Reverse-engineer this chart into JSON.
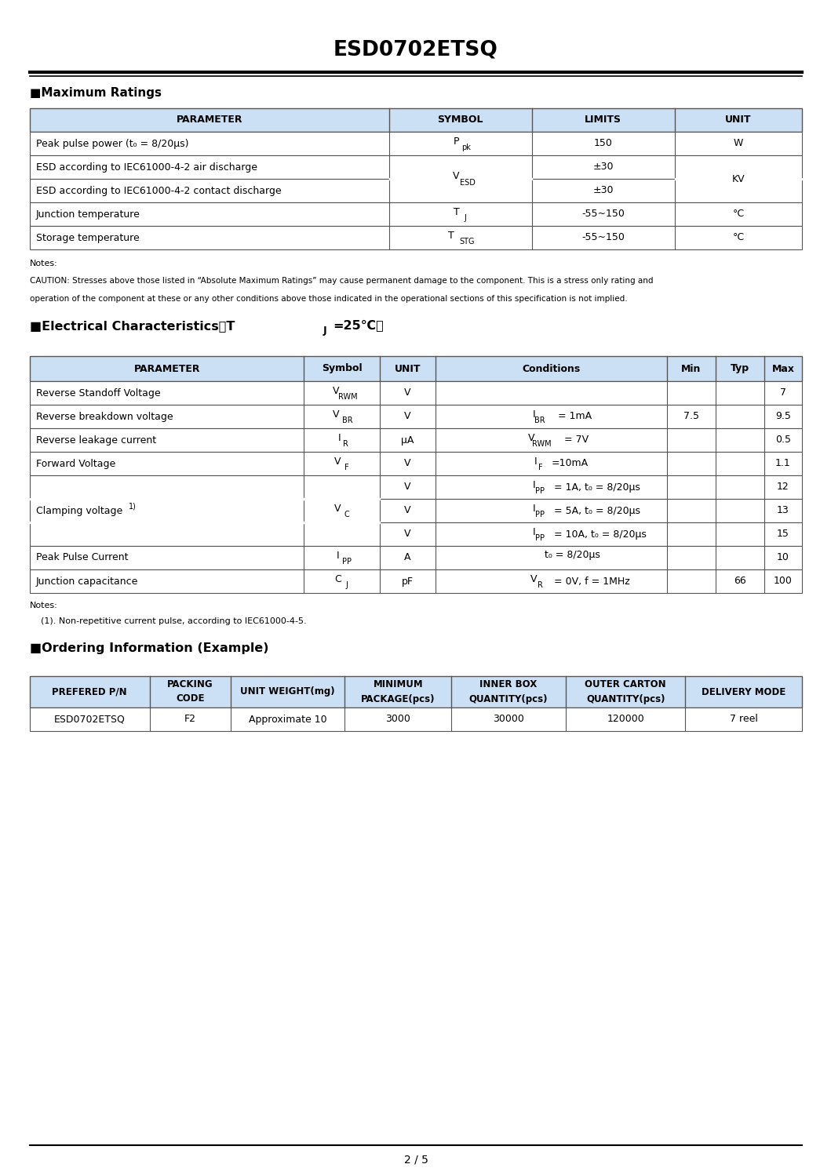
{
  "title": "ESD0702ETSQ",
  "page_num": "2 / 5",
  "bg_color": "#ffffff",
  "header_bg": "#cce0f5",
  "table_border": "#555555",
  "section1_title": "■Maximum Ratings",
  "section2_title_parts": [
    "■Electrical Characteristics（T",
    "J",
    "=25℃）"
  ],
  "section3_title": "■Ordering Information (Example)",
  "max_ratings_headers": [
    "PARAMETER",
    "SYMBOL",
    "LIMITS",
    "UNIT"
  ],
  "mr_col_props": [
    0.465,
    0.185,
    0.185,
    0.165
  ],
  "notes1_line1": "Notes:",
  "notes1_line2": "CAUTION: Stresses above those listed in “Absolute Maximum Ratings” may cause permanent damage to the component. This is a stress only rating and",
  "notes1_line3": "operation of the component at these or any other conditions above those indicated in the operational sections of this specification is not implied.",
  "elec_headers": [
    "PARAMETER",
    "Symbol",
    "UNIT",
    "Conditions",
    "Min",
    "Typ",
    "Max"
  ],
  "ec_col_props": [
    0.355,
    0.098,
    0.072,
    0.3,
    0.063,
    0.063,
    0.049
  ],
  "notes2_line1": "Notes:",
  "notes2_line2": "    (1). Non-repetitive current pulse, according to IEC61000-4-5.",
  "order_headers_line1": [
    "PREFERED P/N",
    "PACKING",
    "UNIT WEIGHT(mg)",
    "MINIMUM",
    "INNER BOX",
    "OUTER CARTON",
    "DELIVERY MODE"
  ],
  "order_headers_line2": [
    "",
    "CODE",
    "",
    "PACKAGE(pcs)",
    "QUANTITY(pcs)",
    "QUANTITY(pcs)",
    ""
  ],
  "ord_col_props": [
    0.155,
    0.105,
    0.148,
    0.138,
    0.148,
    0.155,
    0.151
  ],
  "order_row": [
    "ESD0702ETSQ",
    "F2",
    "Approximate 10",
    "3000",
    "30000",
    "120000",
    "7 reel"
  ]
}
